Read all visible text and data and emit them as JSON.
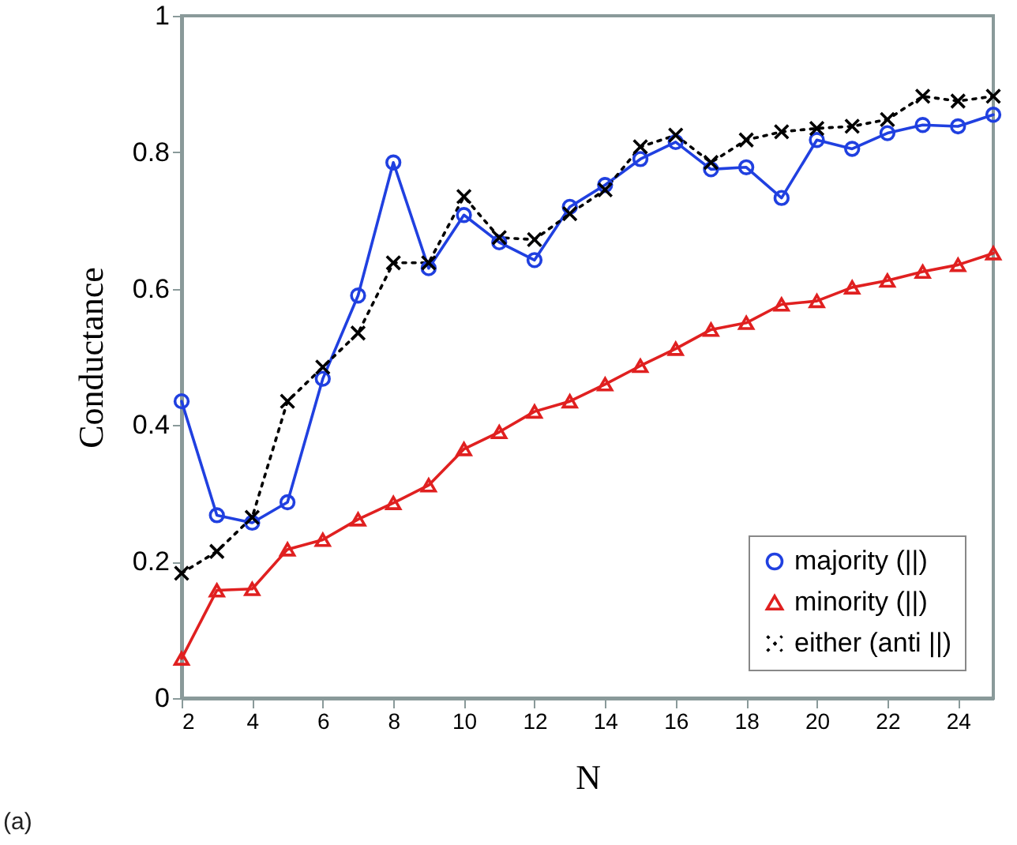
{
  "chart_data": {
    "type": "line",
    "xlabel": "N",
    "ylabel": "Conductance",
    "annotations": [
      "(a)"
    ],
    "x": [
      2,
      3,
      4,
      5,
      6,
      7,
      8,
      9,
      10,
      11,
      12,
      13,
      14,
      15,
      16,
      17,
      18,
      19,
      20,
      21,
      22,
      23,
      24,
      25
    ],
    "series": [
      {
        "name": "majority (||)",
        "color": "#2040e0",
        "marker": "circle",
        "line_style": "solid",
        "values": [
          0.435,
          0.268,
          0.257,
          0.287,
          0.468,
          0.59,
          0.785,
          0.63,
          0.708,
          0.668,
          0.642,
          0.72,
          0.752,
          0.79,
          0.815,
          0.775,
          0.778,
          0.733,
          0.818,
          0.805,
          0.828,
          0.84,
          0.838,
          0.855
        ]
      },
      {
        "name": "minority (||)",
        "color": "#e02020",
        "marker": "triangle",
        "line_style": "solid",
        "values": [
          0.058,
          0.158,
          0.16,
          0.218,
          0.232,
          0.262,
          0.286,
          0.312,
          0.365,
          0.39,
          0.42,
          0.435,
          0.46,
          0.487,
          0.512,
          0.54,
          0.55,
          0.577,
          0.582,
          0.602,
          0.612,
          0.625,
          0.635,
          0.652
        ]
      },
      {
        "name": "either (anti ||)",
        "color": "#000000",
        "marker": "cross",
        "line_style": "dotted",
        "values": [
          0.183,
          0.215,
          0.265,
          0.435,
          0.485,
          0.535,
          0.638,
          0.638,
          0.735,
          0.675,
          0.672,
          0.71,
          0.745,
          0.808,
          0.825,
          0.785,
          0.818,
          0.83,
          0.835,
          0.838,
          0.848,
          0.882,
          0.875,
          0.882
        ]
      }
    ],
    "xlim": [
      2,
      25
    ],
    "xticks": [
      2,
      4,
      6,
      8,
      10,
      12,
      14,
      16,
      18,
      20,
      22,
      24
    ],
    "ylim": [
      0,
      1
    ],
    "yticks": [
      0,
      0.2,
      0.4,
      0.6,
      0.8,
      1
    ],
    "grid": false,
    "legend": "bottom right"
  }
}
